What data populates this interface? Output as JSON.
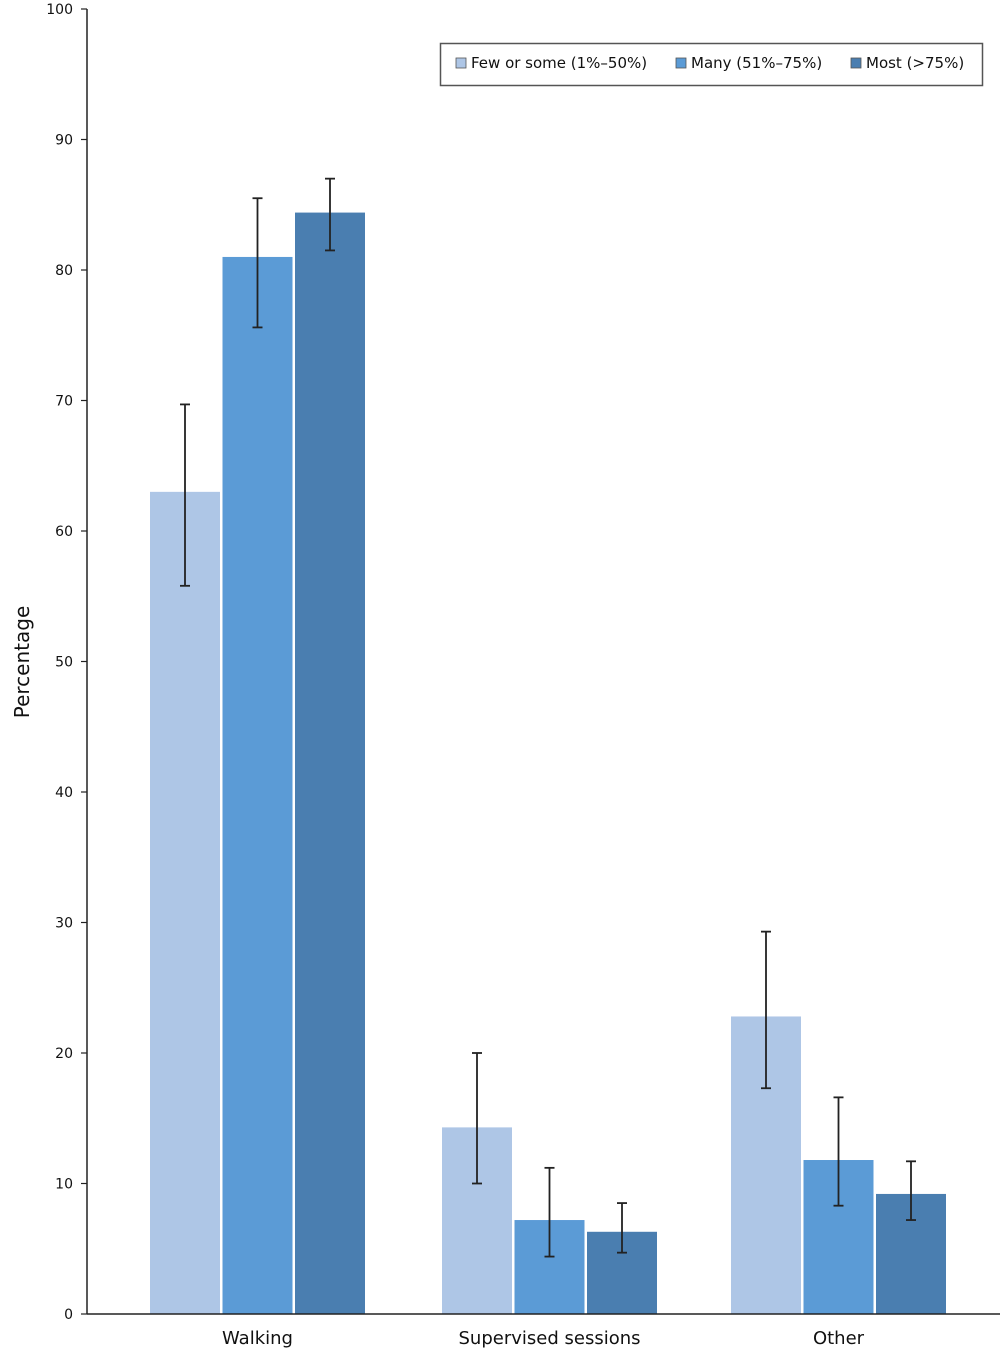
{
  "chart_data": {
    "type": "bar",
    "title": "",
    "xlabel": "",
    "ylabel": "Percentage",
    "ylim": [
      0,
      100
    ],
    "yticks": [
      0,
      10,
      20,
      30,
      40,
      50,
      60,
      70,
      80,
      90,
      100
    ],
    "grid": false,
    "legend_position": "top-right",
    "categories": [
      "Walking",
      "Supervised sessions",
      "Other"
    ],
    "series": [
      {
        "name": "Few or some (1%–50%)",
        "color": "#aec6e6",
        "values": [
          63.0,
          14.3,
          22.8
        ],
        "error_low": [
          55.8,
          10.0,
          17.3
        ],
        "error_high": [
          69.7,
          20.0,
          29.3
        ]
      },
      {
        "name": "Many (51%–75%)",
        "color": "#5b9bd6",
        "values": [
          81.0,
          7.2,
          11.8
        ],
        "error_low": [
          75.6,
          4.4,
          8.3
        ],
        "error_high": [
          85.5,
          11.2,
          16.6
        ]
      },
      {
        "name": "Most (>75%)",
        "color": "#4a7eb0",
        "values": [
          84.4,
          6.3,
          9.2
        ],
        "error_low": [
          81.5,
          4.7,
          7.2
        ],
        "error_high": [
          87.0,
          8.5,
          11.7
        ]
      }
    ]
  }
}
